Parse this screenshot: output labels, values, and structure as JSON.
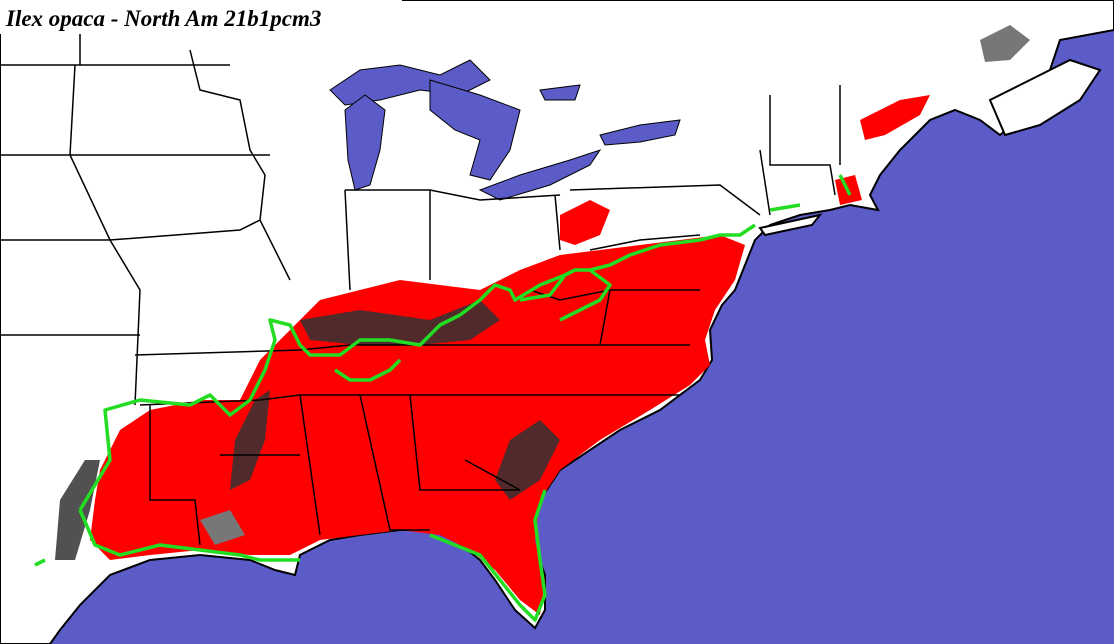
{
  "title": "Ilex opaca - North Am 21b1pcm3"
}
